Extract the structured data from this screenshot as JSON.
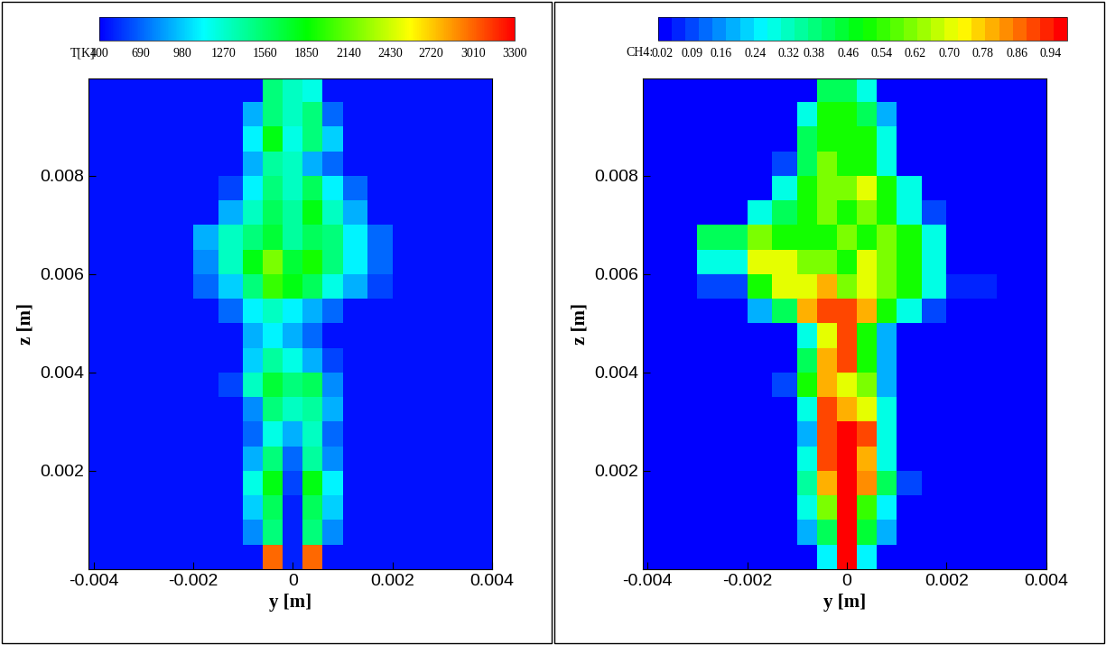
{
  "chart_data": [
    {
      "type": "heatmap",
      "xlabel": "y [m]",
      "ylabel": "z [m]",
      "xlim": [
        -0.0041,
        0.004
      ],
      "ylim": [
        0,
        0.00998
      ],
      "xticks": [
        -0.004,
        -0.002,
        0,
        0.002,
        0.004
      ],
      "yticks": [
        0.002,
        0.004,
        0.006,
        0.008
      ],
      "x_edges": [
        -0.0042,
        -0.003,
        -0.002,
        -0.0015,
        -0.001,
        -0.0006,
        -0.0002,
        0.0002,
        0.0006,
        0.001,
        0.0015,
        0.002,
        0.003,
        0.0042
      ],
      "y_edges": [
        0,
        0.0005,
        0.001,
        0.0015,
        0.002,
        0.0025,
        0.003,
        0.0035,
        0.004,
        0.0045,
        0.005,
        0.0055,
        0.006,
        0.0065,
        0.007,
        0.0075,
        0.008,
        0.0085,
        0.009,
        0.0095,
        0.01
      ],
      "cells": [
        [
          450,
          450,
          450,
          450,
          450,
          3000,
          500,
          3000,
          450,
          450,
          450,
          450,
          450
        ],
        [
          450,
          450,
          450,
          450,
          800,
          1500,
          500,
          1500,
          800,
          450,
          450,
          450,
          450
        ],
        [
          450,
          450,
          450,
          450,
          1000,
          1600,
          500,
          1600,
          1000,
          450,
          450,
          450,
          450
        ],
        [
          450,
          450,
          450,
          450,
          1200,
          1800,
          600,
          1800,
          1100,
          450,
          450,
          450,
          450
        ],
        [
          450,
          450,
          450,
          450,
          900,
          1500,
          700,
          1400,
          800,
          450,
          450,
          450,
          450
        ],
        [
          450,
          450,
          450,
          450,
          700,
          1200,
          900,
          1300,
          700,
          450,
          450,
          450,
          450
        ],
        [
          450,
          450,
          450,
          450,
          800,
          1500,
          1300,
          1400,
          900,
          450,
          450,
          450,
          450
        ],
        [
          450,
          450,
          450,
          600,
          1300,
          1700,
          1500,
          1600,
          800,
          450,
          450,
          450,
          450
        ],
        [
          450,
          450,
          450,
          450,
          1000,
          1400,
          1200,
          900,
          600,
          450,
          450,
          450,
          450
        ],
        [
          450,
          450,
          450,
          450,
          900,
          1100,
          900,
          700,
          450,
          450,
          450,
          450,
          450
        ],
        [
          450,
          450,
          450,
          700,
          1100,
          1300,
          1100,
          900,
          700,
          450,
          450,
          450,
          450
        ],
        [
          450,
          450,
          700,
          1000,
          1500,
          2000,
          1800,
          1600,
          1200,
          900,
          600,
          450,
          450
        ],
        [
          450,
          450,
          800,
          1300,
          1800,
          2200,
          1700,
          1900,
          1500,
          1100,
          700,
          450,
          450
        ],
        [
          450,
          450,
          900,
          1300,
          1500,
          1700,
          1400,
          1600,
          1500,
          1100,
          700,
          450,
          450
        ],
        [
          450,
          450,
          450,
          900,
          1300,
          1600,
          1400,
          1800,
          1300,
          900,
          450,
          450,
          450
        ],
        [
          450,
          450,
          450,
          600,
          1100,
          1500,
          1300,
          1600,
          1100,
          700,
          450,
          450,
          450
        ],
        [
          450,
          450,
          450,
          450,
          900,
          1400,
          1300,
          900,
          700,
          450,
          450,
          450,
          450
        ],
        [
          450,
          450,
          450,
          450,
          1100,
          1800,
          1200,
          1500,
          1000,
          450,
          450,
          450,
          450
        ],
        [
          450,
          450,
          450,
          450,
          900,
          1500,
          1300,
          1500,
          700,
          450,
          450,
          450,
          450
        ],
        [
          450,
          450,
          450,
          450,
          450,
          1500,
          1300,
          1200,
          450,
          450,
          450,
          450,
          450
        ]
      ],
      "colorbar_label": "T[K]",
      "colorbar_range": [
        400,
        3300
      ],
      "colorbar_ticks": [
        400,
        690,
        980,
        1270,
        1560,
        1850,
        2140,
        2430,
        2720,
        3010,
        3300
      ]
    },
    {
      "type": "heatmap",
      "xlabel": "y [m]",
      "ylabel": "z [m]",
      "xlim": [
        -0.0041,
        0.004
      ],
      "ylim": [
        0,
        0.00998
      ],
      "xticks": [
        -0.004,
        -0.002,
        0,
        0.002,
        0.004
      ],
      "yticks": [
        0.002,
        0.004,
        0.006,
        0.008
      ],
      "x_edges": [
        -0.0042,
        -0.003,
        -0.002,
        -0.0015,
        -0.001,
        -0.0006,
        -0.0002,
        0.0002,
        0.0006,
        0.001,
        0.0015,
        0.002,
        0.003,
        0.0042
      ],
      "y_edges": [
        0,
        0.0005,
        0.001,
        0.0015,
        0.002,
        0.0025,
        0.003,
        0.0035,
        0.004,
        0.0045,
        0.005,
        0.0055,
        0.006,
        0.0065,
        0.007,
        0.0075,
        0.008,
        0.0085,
        0.009,
        0.0095,
        0.01
      ],
      "cells": [
        [
          0,
          0,
          0,
          0,
          0,
          0.25,
          0.99,
          0.25,
          0,
          0,
          0,
          0,
          0
        ],
        [
          0,
          0,
          0,
          0,
          0.2,
          0.4,
          0.99,
          0.45,
          0.2,
          0,
          0,
          0,
          0
        ],
        [
          0,
          0,
          0,
          0,
          0.3,
          0.6,
          0.99,
          0.55,
          0.25,
          0,
          0,
          0,
          0
        ],
        [
          0,
          0,
          0,
          0,
          0.35,
          0.8,
          0.99,
          0.85,
          0.4,
          0.1,
          0,
          0,
          0
        ],
        [
          0,
          0,
          0,
          0,
          0.3,
          0.9,
          0.99,
          0.8,
          0.3,
          0,
          0,
          0,
          0
        ],
        [
          0,
          0,
          0,
          0,
          0.2,
          0.9,
          0.95,
          0.9,
          0.3,
          0,
          0,
          0,
          0
        ],
        [
          0,
          0,
          0,
          0,
          0.3,
          0.9,
          0.8,
          0.7,
          0.3,
          0,
          0,
          0,
          0
        ],
        [
          0,
          0,
          0,
          0.1,
          0.5,
          0.8,
          0.7,
          0.6,
          0.2,
          0,
          0,
          0,
          0
        ],
        [
          0,
          0,
          0,
          0,
          0.4,
          0.8,
          0.9,
          0.5,
          0.2,
          0,
          0,
          0,
          0
        ],
        [
          0,
          0,
          0,
          0,
          0.3,
          0.7,
          0.9,
          0.5,
          0.2,
          0,
          0,
          0,
          0
        ],
        [
          0,
          0,
          0.2,
          0.4,
          0.8,
          0.9,
          0.9,
          0.8,
          0.5,
          0.3,
          0.1,
          0,
          0
        ],
        [
          0,
          0.1,
          0.5,
          0.7,
          0.7,
          0.8,
          0.6,
          0.7,
          0.6,
          0.5,
          0.3,
          0.05,
          0
        ],
        [
          0,
          0.3,
          0.7,
          0.7,
          0.6,
          0.6,
          0.5,
          0.7,
          0.6,
          0.5,
          0.3,
          0,
          0
        ],
        [
          0,
          0.4,
          0.6,
          0.5,
          0.5,
          0.5,
          0.6,
          0.5,
          0.6,
          0.5,
          0.3,
          0,
          0
        ],
        [
          0,
          0,
          0.3,
          0.4,
          0.5,
          0.6,
          0.5,
          0.6,
          0.5,
          0.3,
          0.1,
          0,
          0
        ],
        [
          0,
          0,
          0,
          0.3,
          0.5,
          0.6,
          0.6,
          0.7,
          0.5,
          0.3,
          0,
          0,
          0
        ],
        [
          0,
          0,
          0,
          0.1,
          0.4,
          0.6,
          0.5,
          0.5,
          0.3,
          0,
          0,
          0,
          0
        ],
        [
          0,
          0,
          0,
          0,
          0.4,
          0.5,
          0.5,
          0.5,
          0.3,
          0,
          0,
          0,
          0
        ],
        [
          0,
          0,
          0,
          0,
          0.3,
          0.5,
          0.5,
          0.4,
          0.2,
          0,
          0,
          0,
          0
        ],
        [
          0,
          0,
          0,
          0,
          0,
          0.4,
          0.4,
          0.3,
          0,
          0,
          0,
          0,
          0
        ]
      ],
      "colorbar_label": "CH4:",
      "colorbar_range": [
        0.01,
        0.98
      ],
      "colorbar_ticks": [
        0.02,
        0.09,
        0.16,
        0.24,
        0.32,
        0.38,
        0.46,
        0.54,
        0.62,
        {
          "value": 0.7,
          "label": "0.70"
        },
        0.78,
        0.86,
        0.94
      ]
    }
  ]
}
